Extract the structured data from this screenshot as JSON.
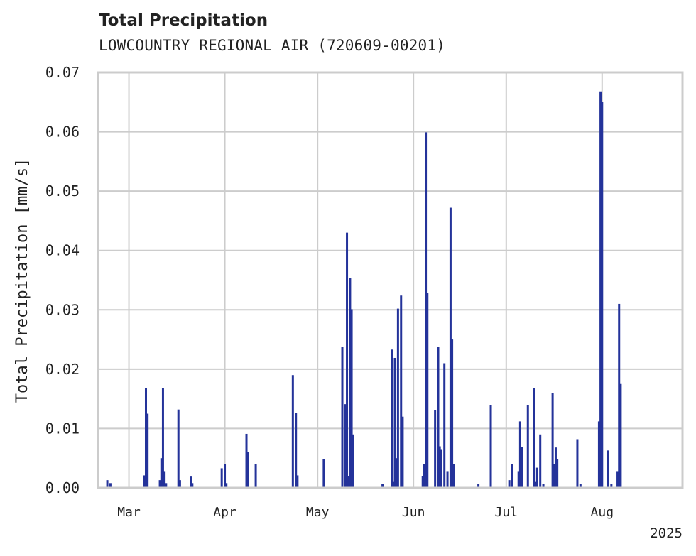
{
  "chart_data": {
    "type": "bar",
    "title": "Total Precipitation",
    "subtitle": "LOWCOUNTRY REGIONAL AIR (720609-00201)",
    "ylabel": "Total Precipitation [mm/s]",
    "xlabel": "",
    "ylim": [
      0,
      0.07
    ],
    "xlim": [
      "2025-02-19",
      "2025-08-27"
    ],
    "yticks": [
      "0.00",
      "0.01",
      "0.02",
      "0.03",
      "0.04",
      "0.05",
      "0.06",
      "0.07"
    ],
    "xticks": [
      {
        "date": "2025-03-01",
        "label": "Mar"
      },
      {
        "date": "2025-04-01",
        "label": "Apr"
      },
      {
        "date": "2025-05-01",
        "label": "May"
      },
      {
        "date": "2025-06-01",
        "label": "Jun"
      },
      {
        "date": "2025-07-01",
        "label": "Jul"
      },
      {
        "date": "2025-08-01",
        "label": "Aug"
      }
    ],
    "year_label": "2025",
    "grid": true,
    "colors": {
      "bar": "#24339a",
      "grid": "#cccccc",
      "axes": "#cccccc",
      "text": "#222222"
    },
    "series": [
      {
        "x": [
          "2025-02-22",
          "2025-02-23",
          "2025-03-06",
          "2025-03-06T12",
          "2025-03-07",
          "2025-03-11",
          "2025-03-11T12",
          "2025-03-12",
          "2025-03-12T12",
          "2025-03-13",
          "2025-03-17",
          "2025-03-17T12",
          "2025-03-21",
          "2025-03-21T12",
          "2025-03-31",
          "2025-04-01",
          "2025-04-01T12",
          "2025-04-08",
          "2025-04-08T12",
          "2025-04-11",
          "2025-04-23",
          "2025-04-24",
          "2025-04-24T12",
          "2025-05-03",
          "2025-05-09",
          "2025-05-10",
          "2025-05-10T12",
          "2025-05-11",
          "2025-05-11T12",
          "2025-05-12",
          "2025-05-12T12",
          "2025-05-22",
          "2025-05-25",
          "2025-05-25T12",
          "2025-05-26",
          "2025-05-26T12",
          "2025-05-27",
          "2025-05-28",
          "2025-05-28T12",
          "2025-06-04",
          "2025-06-04T12",
          "2025-06-05",
          "2025-06-05T12",
          "2025-06-08",
          "2025-06-09",
          "2025-06-09T12",
          "2025-06-10",
          "2025-06-11",
          "2025-06-12",
          "2025-06-13",
          "2025-06-13T12",
          "2025-06-14",
          "2025-06-22",
          "2025-06-26",
          "2025-07-02",
          "2025-07-03",
          "2025-07-05",
          "2025-07-05T12",
          "2025-07-06",
          "2025-07-08",
          "2025-07-10",
          "2025-07-10T12",
          "2025-07-11",
          "2025-07-12",
          "2025-07-13",
          "2025-07-16",
          "2025-07-16T12",
          "2025-07-17",
          "2025-07-17T12",
          "2025-07-24",
          "2025-07-25",
          "2025-07-31",
          "2025-07-31T12",
          "2025-08-01",
          "2025-08-03",
          "2025-08-04",
          "2025-08-06",
          "2025-08-06T12",
          "2025-08-07"
        ],
        "values": [
          0.0013,
          0.0008,
          0.0021,
          0.0168,
          0.0125,
          0.0013,
          0.005,
          0.0168,
          0.0027,
          0.0008,
          0.0132,
          0.0013,
          0.0019,
          0.0008,
          0.0033,
          0.004,
          0.0008,
          0.0091,
          0.006,
          0.004,
          0.019,
          0.0126,
          0.0021,
          0.0049,
          0.0237,
          0.0141,
          0.043,
          0.002,
          0.0353,
          0.0301,
          0.009,
          0.0007,
          0.0233,
          0.001,
          0.0219,
          0.005,
          0.0302,
          0.0324,
          0.012,
          0.002,
          0.004,
          0.0599,
          0.0328,
          0.0131,
          0.0237,
          0.007,
          0.0064,
          0.021,
          0.0027,
          0.0472,
          0.025,
          0.004,
          0.0007,
          0.014,
          0.0013,
          0.004,
          0.0027,
          0.0112,
          0.0069,
          0.014,
          0.0168,
          0.001,
          0.0034,
          0.009,
          0.0007,
          0.016,
          0.004,
          0.0068,
          0.0049,
          0.0082,
          0.0007,
          0.0112,
          0.0668,
          0.065,
          0.0063,
          0.0007,
          0.0027,
          0.031,
          0.0175
        ]
      }
    ]
  }
}
